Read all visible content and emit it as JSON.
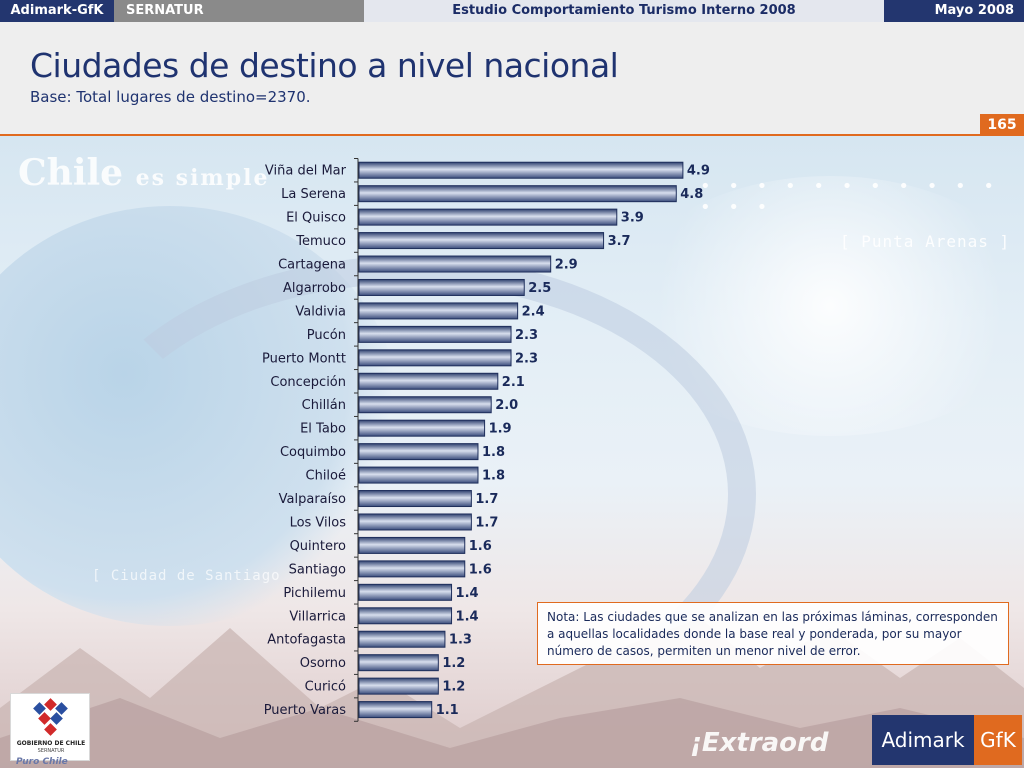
{
  "topbar": {
    "brand": "Adimark-GfK",
    "client": "SERNATUR",
    "study": "Estudio Comportamiento Turismo Interno 2008",
    "date": "Mayo 2008"
  },
  "header": {
    "title": "Ciudades de destino a nivel nacional",
    "subtitle": "Base: Total lugares de destino=2370.",
    "page_number": "165"
  },
  "background": {
    "watermark_main": "Chile",
    "watermark_main_rest": "es simple",
    "watermark_punta": "[ Punta Arenas ]",
    "watermark_ciudad": "[ Ciudad de Santiago",
    "watermark_extra": "¡Extraord"
  },
  "chart_data": {
    "type": "bar",
    "orientation": "horizontal",
    "categories": [
      "Viña del Mar",
      "La Serena",
      "El Quisco",
      "Temuco",
      "Cartagena",
      "Algarrobo",
      "Valdivia",
      "Pucón",
      "Puerto Montt",
      "Concepción",
      "Chillán",
      "El Tabo",
      "Coquimbo",
      "Chiloé",
      "Valparaíso",
      "Los Vilos",
      "Quintero",
      "Santiago",
      "Pichilemu",
      "Villarrica",
      "Antofagasta",
      "Osorno",
      "Curicó",
      "Puerto Varas"
    ],
    "values": [
      4.9,
      4.8,
      3.9,
      3.7,
      2.9,
      2.5,
      2.4,
      2.3,
      2.3,
      2.1,
      2.0,
      1.9,
      1.8,
      1.8,
      1.7,
      1.7,
      1.6,
      1.6,
      1.4,
      1.4,
      1.3,
      1.2,
      1.2,
      1.1
    ],
    "value_labels": [
      "4.9",
      "4.8",
      "3.9",
      "3.7",
      "2.9",
      "2.5",
      "2.4",
      "2.3",
      "2.3",
      "2.1",
      "2.0",
      "1.9",
      "1.8",
      "1.8",
      "1.7",
      "1.7",
      "1.6",
      "1.6",
      "1.4",
      "1.4",
      "1.3",
      "1.2",
      "1.2",
      "1.1"
    ],
    "xlim": [
      0,
      5
    ],
    "bar_color": "#5a6f9c",
    "bar_edge_color": "#1f2f5c",
    "grid": false
  },
  "note": {
    "text": "Nota: Las ciudades que se analizan en las próximas láminas, corresponden a aquellas localidades donde la base real y ponderada, por su mayor número de casos, permiten un menor nivel de error."
  },
  "logos": {
    "gobierno_line1": "GOBIERNO DE CHILE",
    "gobierno_line2": "SERNATUR",
    "puro_chile": "Puro Chile",
    "adimark_left": "Adimark",
    "adimark_right": "GfK"
  },
  "colors": {
    "navy": "#23366f",
    "orange": "#e06a1f"
  }
}
